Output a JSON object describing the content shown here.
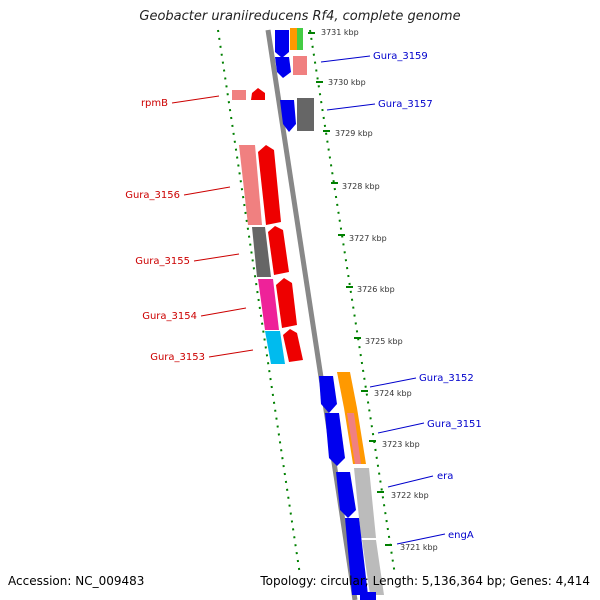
{
  "title": "Geobacter uraniireducens Rf4, complete genome",
  "accession": "Accession: NC_009483",
  "topology": "Topology: circular; Length: 5,136,364 bp; Genes: 4,414",
  "colors": {
    "backbone": "#808080",
    "tick": "#008000",
    "label_blue": "#0000cc",
    "label_red": "#cc0000"
  },
  "ticks": [
    {
      "label": "3731 kbp"
    },
    {
      "label": "3730 kbp"
    },
    {
      "label": "3729 kbp"
    },
    {
      "label": "3728 kbp"
    },
    {
      "label": "3727 kbp"
    },
    {
      "label": "3726 kbp"
    },
    {
      "label": "3725 kbp"
    },
    {
      "label": "3724 kbp"
    },
    {
      "label": "3723 kbp"
    },
    {
      "label": "3722 kbp"
    },
    {
      "label": "3721 kbp"
    }
  ],
  "gene_labels": [
    {
      "name": "Gura_3159",
      "strand": "forward"
    },
    {
      "name": "Gura_3157",
      "strand": "forward"
    },
    {
      "name": "rpmB",
      "strand": "reverse"
    },
    {
      "name": "Gura_3156",
      "strand": "reverse"
    },
    {
      "name": "Gura_3155",
      "strand": "reverse"
    },
    {
      "name": "Gura_3154",
      "strand": "reverse"
    },
    {
      "name": "Gura_3153",
      "strand": "reverse"
    },
    {
      "name": "Gura_3152",
      "strand": "forward"
    },
    {
      "name": "Gura_3151",
      "strand": "forward"
    },
    {
      "name": "era",
      "strand": "forward"
    },
    {
      "name": "engA",
      "strand": "forward"
    }
  ]
}
